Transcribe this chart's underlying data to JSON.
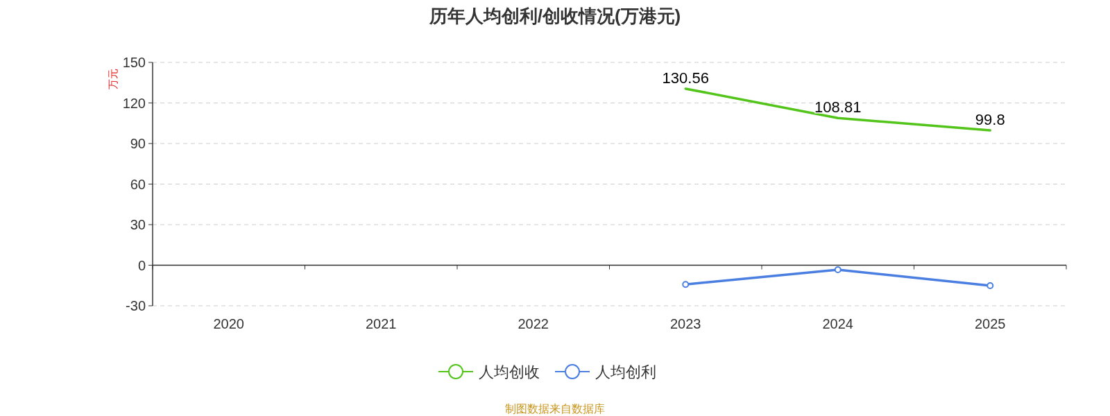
{
  "chart_data": {
    "type": "line",
    "title": "历年人均创利/创收情况(万港元)",
    "ylabel": "万元",
    "categories": [
      "2020",
      "2021",
      "2022",
      "2023",
      "2024",
      "2025"
    ],
    "series": [
      {
        "name": "人均创收",
        "color": "#52c41a",
        "values": [
          null,
          null,
          null,
          130.56,
          108.81,
          99.8
        ],
        "marker": "none",
        "data_labels": true
      },
      {
        "name": "人均创利",
        "color": "#4a7ee0",
        "values": [
          null,
          null,
          null,
          -14.2,
          -3.3,
          -15.1
        ],
        "marker": "circle"
      }
    ],
    "ylim": [
      -30,
      150
    ],
    "yticks": [
      -30,
      0,
      30,
      60,
      90,
      120,
      150
    ],
    "grid": "y",
    "legend": "bottom",
    "annotations": [
      "制图数据来自数据库"
    ]
  }
}
